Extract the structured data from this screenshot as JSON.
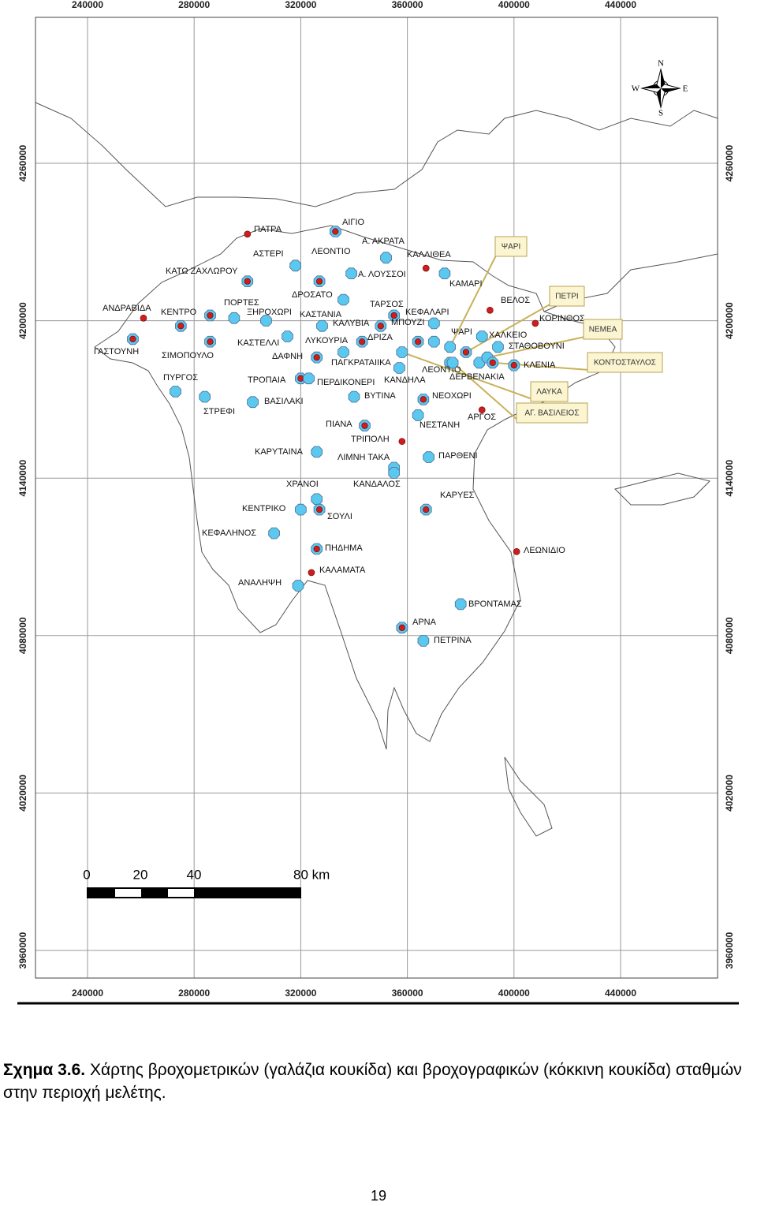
{
  "map": {
    "xticks": [
      240000,
      280000,
      320000,
      360000,
      400000,
      440000
    ],
    "yticks": [
      3960000,
      4020000,
      4080000,
      4140000,
      4200000,
      4260000
    ],
    "grid": true,
    "compass": {
      "n": "N",
      "e": "E",
      "s": "S",
      "w": "W"
    },
    "scale_bar": {
      "labels": [
        "0",
        "20",
        "40",
        "80 km"
      ]
    },
    "stations": [
      {
        "name": "ΠΑΤΡΑ",
        "x": 300000,
        "y": 4233000,
        "colors": [
          "#d01c1c"
        ]
      },
      {
        "name": "ΑΙΓΙΟ",
        "x": 333000,
        "y": 4234000,
        "colors": [
          "#5bc8f0",
          "#d01c1c"
        ]
      },
      {
        "name": "Α. ΑΚΡΑΤΑ",
        "x": 352000,
        "y": 4224000,
        "colors": [
          "#5bc8f0"
        ]
      },
      {
        "name": "ΑΣΤΕΡΙ",
        "x": 318000,
        "y": 4221000,
        "colors": [
          "#5bc8f0"
        ]
      },
      {
        "name": "ΛΕΟΝΤΙΟ",
        "x": 327000,
        "y": 4215000,
        "colors": [
          "#5bc8f0",
          "#d01c1c"
        ]
      },
      {
        "name": "ΚΑΛΛΙΘΕΑ",
        "x": 367000,
        "y": 4220000,
        "colors": [
          "#d01c1c"
        ]
      },
      {
        "name": "ΚΑΤΩ ΖΑΧΛΩΡΟΥ",
        "x": 300000,
        "y": 4215000,
        "colors": [
          "#5bc8f0",
          "#d01c1c"
        ]
      },
      {
        "name": "Α. ΛΟΥΣΣΟΙ",
        "x": 339000,
        "y": 4218000,
        "colors": [
          "#5bc8f0"
        ]
      },
      {
        "name": "ΚΑΜΑΡΙ",
        "x": 374000,
        "y": 4218000,
        "colors": [
          "#5bc8f0"
        ]
      },
      {
        "name": "ΔΡΟΣΑΤΟ",
        "x": 336000,
        "y": 4208000,
        "colors": [
          "#5bc8f0"
        ]
      },
      {
        "name": "ΤΑΡΣΟΣ",
        "x": 370000,
        "y": 4199000,
        "colors": [
          "#5bc8f0"
        ]
      },
      {
        "name": "ΒΕΛΟΣ",
        "x": 391000,
        "y": 4204000,
        "colors": [
          "#d01c1c"
        ]
      },
      {
        "name": "ΠΟΡΤΕΣ",
        "x": 295000,
        "y": 4201000,
        "colors": [
          "#5bc8f0"
        ]
      },
      {
        "name": "ΑΝΔΡΑΒΙΔΑ",
        "x": 261000,
        "y": 4201000,
        "colors": [
          "#d01c1c"
        ]
      },
      {
        "name": "ΚΕΝΤΡΟ",
        "x": 275000,
        "y": 4198000,
        "colors": [
          "#5bc8f0",
          "#d01c1c"
        ]
      },
      {
        "name": "ΞΗΡΟΧΩΡΙ",
        "x": 286000,
        "y": 4202000,
        "colors": [
          "#5bc8f0",
          "#d01c1c"
        ]
      },
      {
        "name": "ΚΑΣΤΑΝΙΑ",
        "x": 307000,
        "y": 4200000,
        "colors": [
          "#5bc8f0"
        ]
      },
      {
        "name": "ΚΕΦΑΛΑΡΙ",
        "x": 355000,
        "y": 4202000,
        "colors": [
          "#5bc8f0",
          "#d01c1c"
        ]
      },
      {
        "name": "ΚΑΛΥΒΙΑ",
        "x": 350000,
        "y": 4198000,
        "colors": [
          "#5bc8f0",
          "#d01c1c"
        ]
      },
      {
        "name": "ΜΠΟΥΖΙ",
        "x": 364000,
        "y": 4192000,
        "colors": [
          "#5bc8f0",
          "#d01c1c"
        ]
      },
      {
        "name": "ΚΟΡΙΝΘΟΣ",
        "x": 408000,
        "y": 4199000,
        "colors": [
          "#d01c1c"
        ]
      },
      {
        "name": "ΓΑΣΤΟΥΝΗ",
        "x": 257000,
        "y": 4193000,
        "colors": [
          "#5bc8f0",
          "#d01c1c"
        ]
      },
      {
        "name": "ΣΙΜΟΠΟΥΛΟ",
        "x": 286000,
        "y": 4192000,
        "colors": [
          "#5bc8f0",
          "#d01c1c"
        ]
      },
      {
        "name": "ΚΑΣΤΕΛΛΙ",
        "x": 315000,
        "y": 4194000,
        "colors": [
          "#5bc8f0"
        ]
      },
      {
        "name": "ΛΥΚΟΥΡΙΑ",
        "x": 328000,
        "y": 4198000,
        "colors": [
          "#5bc8f0"
        ]
      },
      {
        "name": "ΔΡΙΖΑ",
        "x": 343000,
        "y": 4192000,
        "colors": [
          "#5bc8f0",
          "#d01c1c"
        ]
      },
      {
        "name": "ΨΑΡΙ",
        "x": 370000,
        "y": 4192000,
        "colors": [
          "#5bc8f0"
        ]
      },
      {
        "name": "ΧΑΛΚΕΙΟ",
        "x": 388000,
        "y": 4194000,
        "colors": [
          "#5bc8f0"
        ]
      },
      {
        "name": "ΣΤΑΘΟΒΟΥΝΙ",
        "x": 394000,
        "y": 4190000,
        "colors": [
          "#5bc8f0"
        ]
      },
      {
        "name": "ΔΑΦΝΗ",
        "x": 326000,
        "y": 4186000,
        "colors": [
          "#5bc8f0",
          "#d01c1c"
        ]
      },
      {
        "name": "ΠΑΓΚΡΑΤΑΙΙΚΑ",
        "x": 336000,
        "y": 4188000,
        "colors": [
          "#5bc8f0"
        ]
      },
      {
        "name": "ΛΕΟΝΤΙΟ",
        "x": 376000,
        "y": 4184000,
        "colors": [
          "#5bc8f0"
        ]
      },
      {
        "name": "ΚΛΕΝΙΑ",
        "x": 400000,
        "y": 4183000,
        "colors": [
          "#5bc8f0",
          "#d01c1c"
        ]
      },
      {
        "name": "ΠΥΡΓΟΣ",
        "x": 273000,
        "y": 4173000,
        "colors": [
          "#5bc8f0"
        ]
      },
      {
        "name": "ΤΡΟΠΑΙΑ",
        "x": 320000,
        "y": 4178000,
        "colors": [
          "#5bc8f0",
          "#d01c1c"
        ]
      },
      {
        "name": "ΠΕΡΔΙΚΟΝΕΡΙ",
        "x": 323000,
        "y": 4178000,
        "colors": [
          "#5bc8f0"
        ]
      },
      {
        "name": "ΚΑΝΔΗΛΑ",
        "x": 357000,
        "y": 4182000,
        "colors": [
          "#5bc8f0"
        ]
      },
      {
        "name": "ΔΕΡΒΕΝΑΚΙΑ",
        "x": 387000,
        "y": 4184000,
        "colors": [
          "#5bc8f0"
        ]
      },
      {
        "name": "ΣΤΡΕΦΙ",
        "x": 284000,
        "y": 4171000,
        "colors": [
          "#5bc8f0"
        ]
      },
      {
        "name": "ΒΑΣΙΛΑΚΙ",
        "x": 302000,
        "y": 4169000,
        "colors": [
          "#5bc8f0"
        ]
      },
      {
        "name": "ΒΥΤΙΝΑ",
        "x": 340000,
        "y": 4171000,
        "colors": [
          "#5bc8f0"
        ]
      },
      {
        "name": "ΝΕΟΧΩΡΙ",
        "x": 366000,
        "y": 4170000,
        "colors": [
          "#5bc8f0",
          "#d01c1c"
        ]
      },
      {
        "name": "ΑΡΓΟΣ",
        "x": 388000,
        "y": 4166000,
        "colors": [
          "#d01c1c"
        ]
      },
      {
        "name": "ΝΕΣΤΑΝΗ",
        "x": 364000,
        "y": 4164000,
        "colors": [
          "#5bc8f0"
        ]
      },
      {
        "name": "ΠΙΑΝΑ",
        "x": 344000,
        "y": 4160000,
        "colors": [
          "#5bc8f0",
          "#d01c1c"
        ]
      },
      {
        "name": "ΤΡΙΠΟΛΗ",
        "x": 358000,
        "y": 4154000,
        "colors": [
          "#d01c1c"
        ]
      },
      {
        "name": "ΚΑΡΥΤΑΙΝΑ",
        "x": 326000,
        "y": 4150000,
        "colors": [
          "#5bc8f0"
        ]
      },
      {
        "name": "ΛΙΜΝΗ ΤΑΚΑ",
        "x": 355000,
        "y": 4144000,
        "colors": [
          "#5bc8f0"
        ]
      },
      {
        "name": "ΠΑΡΘΕΝΙ",
        "x": 368000,
        "y": 4148000,
        "colors": [
          "#5bc8f0"
        ]
      },
      {
        "name": "ΧΡΑΝΟΙ",
        "x": 326000,
        "y": 4132000,
        "colors": [
          "#5bc8f0"
        ]
      },
      {
        "name": "ΚΑΝΔΑΛΟΣ",
        "x": 355000,
        "y": 4142000,
        "colors": [
          "#5bc8f0"
        ]
      },
      {
        "name": "ΚΑΡΥΕΣ",
        "x": 367000,
        "y": 4128000,
        "colors": [
          "#5bc8f0",
          "#d01c1c"
        ]
      },
      {
        "name": "ΚΕΝΤΡΙΚΟ",
        "x": 320000,
        "y": 4128000,
        "colors": [
          "#5bc8f0"
        ]
      },
      {
        "name": "ΣΟΥΛΙ",
        "x": 327000,
        "y": 4128000,
        "colors": [
          "#5bc8f0",
          "#d01c1c"
        ]
      },
      {
        "name": "ΚΕΦΑΛΗΝΟΣ",
        "x": 310000,
        "y": 4119000,
        "colors": [
          "#5bc8f0"
        ]
      },
      {
        "name": "ΠΗΔΗΜΑ",
        "x": 326000,
        "y": 4113000,
        "colors": [
          "#5bc8f0",
          "#d01c1c"
        ]
      },
      {
        "name": "ΛΕΩΝΙΔΙΟ",
        "x": 401000,
        "y": 4112000,
        "colors": [
          "#d01c1c"
        ]
      },
      {
        "name": "ΚΑΛΑΜΑΤΑ",
        "x": 324000,
        "y": 4104000,
        "colors": [
          "#d01c1c"
        ]
      },
      {
        "name": "ΑΝΑΛΗΨΗ",
        "x": 319000,
        "y": 4099000,
        "colors": [
          "#5bc8f0"
        ]
      },
      {
        "name": "ΒΡΟΝΤΑΜΑΣ",
        "x": 380000,
        "y": 4092000,
        "colors": [
          "#5bc8f0"
        ]
      },
      {
        "name": "ΑΡΝΑ",
        "x": 358000,
        "y": 4083000,
        "colors": [
          "#5bc8f0",
          "#d01c1c"
        ]
      },
      {
        "name": "ΠΕΤΡΙΝΑ",
        "x": 366000,
        "y": 4078000,
        "colors": [
          "#5bc8f0"
        ]
      },
      {
        "name": "ΨΑΡΙ",
        "x": 376000,
        "y": 4190000,
        "colors": [
          "#5bc8f0"
        ]
      },
      {
        "name": "ΠΕΤΡΙ",
        "x": 382000,
        "y": 4188000,
        "colors": [
          "#5bc8f0",
          "#d01c1c"
        ]
      },
      {
        "name": "ΝΕΜΕΑ",
        "x": 390000,
        "y": 4186000,
        "colors": [
          "#5bc8f0"
        ]
      },
      {
        "name": "ΚΟΝΤΟΣΤΑΥΛΟΣ",
        "x": 392000,
        "y": 4184000,
        "colors": [
          "#5bc8f0",
          "#d01c1c"
        ]
      },
      {
        "name": "ΛΑΥΚΑ",
        "x": 358000,
        "y": 4188000,
        "colors": [
          "#5bc8f0"
        ]
      },
      {
        "name": "ΑΓ. ΒΑΣΙΛΕΙΟΣ",
        "x": 377000,
        "y": 4184000,
        "colors": [
          "#5bc8f0"
        ]
      }
    ]
  },
  "caption": {
    "label": "Σχημα 3.6.",
    "text": "Χάρτης βροχομετρικών (γαλάζια κουκίδα) και βροχογραφικών (κόκκινη κουκίδα) σταθμών στην περιοχή μελέτης."
  },
  "page_number": "19"
}
